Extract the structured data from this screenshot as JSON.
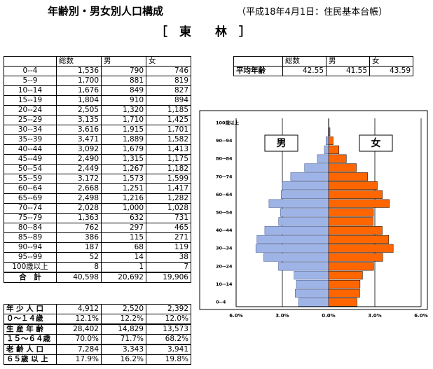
{
  "header": {
    "title": "年齢別・男女別人口構成",
    "source": "（平成18年4月1日：住民基本台帳）",
    "area": "［　東　　林　］"
  },
  "age_table": {
    "columns": [
      "総数",
      "男",
      "女"
    ],
    "rows": [
      [
        "0--4",
        "1,536",
        "790",
        "746"
      ],
      [
        "5--9",
        "1,700",
        "881",
        "819"
      ],
      [
        "10--14",
        "1,676",
        "849",
        "827"
      ],
      [
        "15--19",
        "1,804",
        "910",
        "894"
      ],
      [
        "20--24",
        "2,505",
        "1,320",
        "1,185"
      ],
      [
        "25--29",
        "3,135",
        "1,710",
        "1,425"
      ],
      [
        "30--34",
        "3,616",
        "1,915",
        "1,701"
      ],
      [
        "35--39",
        "3,471",
        "1,889",
        "1,582"
      ],
      [
        "40--44",
        "3,092",
        "1,679",
        "1,413"
      ],
      [
        "45--49",
        "2,490",
        "1,315",
        "1,175"
      ],
      [
        "50--54",
        "2,449",
        "1,267",
        "1,182"
      ],
      [
        "55--59",
        "3,172",
        "1,573",
        "1,599"
      ],
      [
        "60--64",
        "2,668",
        "1,251",
        "1,417"
      ],
      [
        "65--69",
        "2,498",
        "1,216",
        "1,282"
      ],
      [
        "70--74",
        "2,028",
        "1,000",
        "1,028"
      ],
      [
        "75--79",
        "1,363",
        "632",
        "731"
      ],
      [
        "80--84",
        "762",
        "297",
        "465"
      ],
      [
        "85--89",
        "386",
        "115",
        "271"
      ],
      [
        "90--94",
        "187",
        "68",
        "119"
      ],
      [
        "95--99",
        "52",
        "14",
        "38"
      ],
      [
        "100歳以上",
        "8",
        "1",
        "7"
      ]
    ],
    "total": [
      "合　計",
      "40,598",
      "20,692",
      "19,906"
    ]
  },
  "group_table": {
    "rows": [
      {
        "label": [
          "年 少 人 口",
          "０～１４歳"
        ],
        "counts": [
          "4,912",
          "2,520",
          "2,392"
        ],
        "shares": [
          "12.1%",
          "12.2%",
          "12.0%"
        ]
      },
      {
        "label": [
          "生 産 年 齢",
          "１５～６４歳"
        ],
        "counts": [
          "28,402",
          "14,829",
          "13,573"
        ],
        "shares": [
          "70.0%",
          "71.7%",
          "68.2%"
        ]
      },
      {
        "label": [
          "老 齢 人 口",
          "６５歳 以 上"
        ],
        "counts": [
          "7,284",
          "3,343",
          "3,941"
        ],
        "shares": [
          "17.9%",
          "16.2%",
          "19.8%"
        ]
      }
    ]
  },
  "average_table": {
    "columns": [
      "総数",
      "男",
      "女"
    ],
    "row": [
      "平均年齢",
      "42.55",
      "41.55",
      "43.59"
    ]
  },
  "chart_data": {
    "type": "pyramid",
    "categories": [
      "0--4",
      null,
      "10--14",
      null,
      "20--24",
      null,
      "30--34",
      null,
      "40--44",
      null,
      "50--54",
      null,
      "60--64",
      null,
      "70--74",
      null,
      "80--84",
      null,
      "90--94",
      null,
      "100歳以上"
    ],
    "series": [
      {
        "name": "男",
        "color": "#9fb4e6",
        "values": [
          -1.95,
          -2.17,
          -2.09,
          -2.24,
          -3.25,
          -4.21,
          -4.72,
          -4.65,
          -4.14,
          -3.24,
          -3.12,
          -3.87,
          -3.08,
          -3.0,
          -2.46,
          -1.56,
          -0.73,
          -0.28,
          -0.17,
          -0.03,
          0.0
        ]
      },
      {
        "name": "女",
        "color": "#ff6600",
        "values": [
          1.84,
          2.02,
          2.04,
          2.2,
          2.92,
          3.51,
          4.19,
          3.9,
          3.48,
          2.89,
          2.91,
          3.94,
          3.49,
          3.16,
          2.53,
          1.8,
          1.15,
          0.67,
          0.29,
          0.09,
          0.02
        ]
      }
    ],
    "xlim": [
      -6,
      6
    ],
    "xticks": [
      {
        "value": -6,
        "label": "6.0%"
      },
      {
        "value": -3,
        "label": "3.0%"
      },
      {
        "value": 0,
        "label": "0.0%"
      },
      {
        "value": 3,
        "label": "3.0%"
      },
      {
        "value": 6,
        "label": "6.0%"
      }
    ],
    "grid": true
  }
}
